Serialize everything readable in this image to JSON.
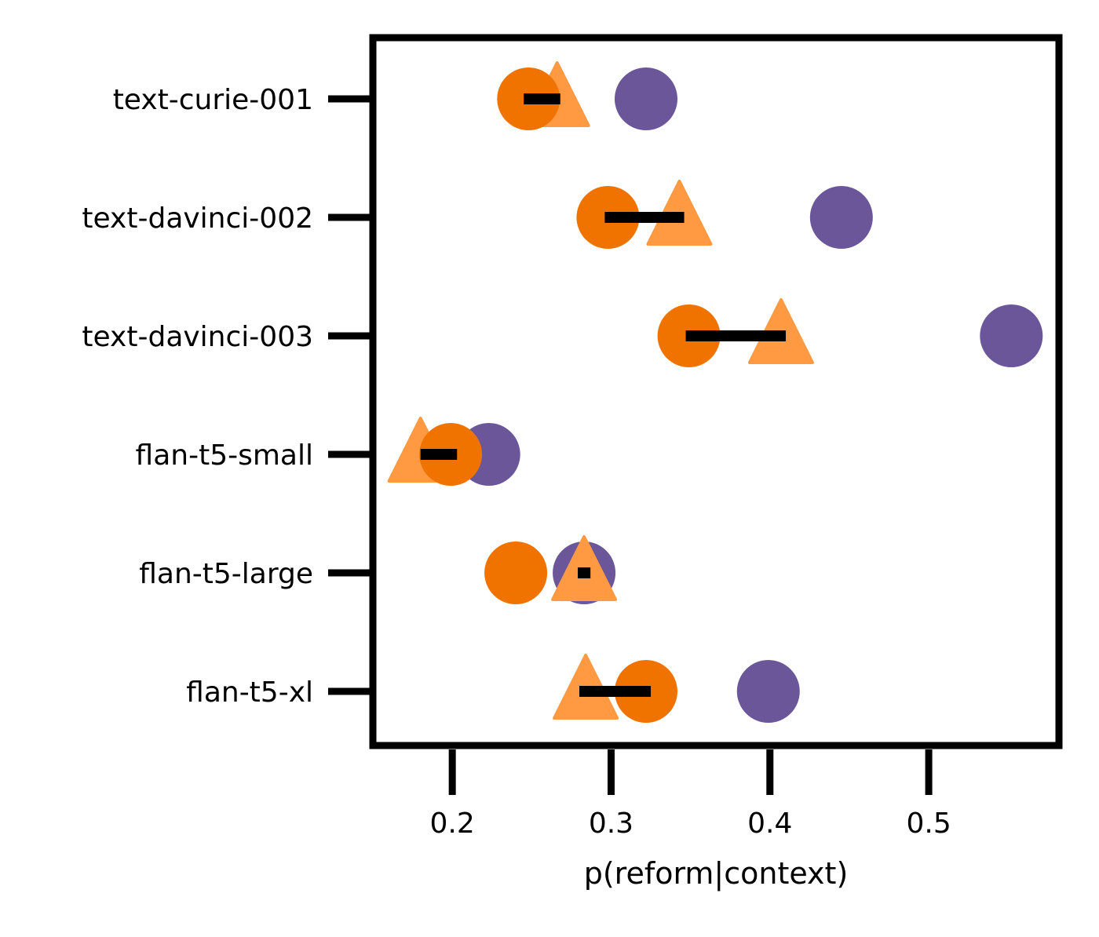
{
  "chart_data": {
    "type": "scatter",
    "title": "",
    "xlabel": "p(reform|context)",
    "ylabel": "",
    "xlim": [
      0.15,
      0.582
    ],
    "x_ticks": [
      "0.2",
      "0.3",
      "0.4",
      "0.5"
    ],
    "x_tick_values": [
      0.2,
      0.3,
      0.4,
      0.5
    ],
    "categories": [
      "text-curie-001",
      "text-davinci-002",
      "text-davinci-003",
      "flan-t5-small",
      "flan-t5-large",
      "flan-t5-xl"
    ],
    "grid": false,
    "legend": "none",
    "colors": {
      "purple_circle": "#6a5699",
      "orange_circle": "#f07300",
      "orange_triangle": "#ff9a42",
      "range_bar": "#000000"
    },
    "series": [
      {
        "marker": "circle",
        "color": "#6a5699",
        "values": [
          0.322,
          0.445,
          0.552,
          0.223,
          0.283,
          0.399
        ]
      },
      {
        "marker": "triangle",
        "color": "#ff9a42",
        "values": [
          0.266,
          0.343,
          0.407,
          0.18,
          0.283,
          0.284
        ]
      },
      {
        "marker": "circle",
        "color": "#f07300",
        "values": [
          0.248,
          0.298,
          0.349,
          0.199,
          0.24,
          0.322
        ]
      }
    ],
    "range_bars": [
      [
        0.245,
        0.268
      ],
      [
        0.296,
        0.346
      ],
      [
        0.347,
        0.41
      ],
      [
        0.18,
        0.203
      ],
      [
        0.279,
        0.287
      ],
      [
        0.28,
        0.325
      ]
    ]
  }
}
